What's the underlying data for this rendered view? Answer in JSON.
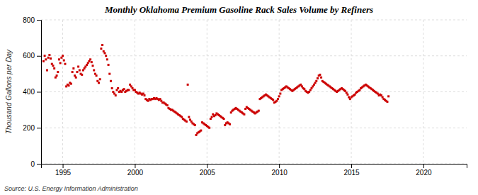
{
  "chart_data": {
    "type": "scatter",
    "title": "Monthly Oklahoma Premium Gasoline Rack Sales Volume by Refiners",
    "ylabel": "Thousand Gallons per Day",
    "source": "Source: U.S. Energy Information Administration",
    "color": "#cc0000",
    "marker": "square",
    "grid": true,
    "ylim": [
      0,
      800
    ],
    "yticks": [
      0,
      200,
      400,
      600,
      800
    ],
    "xlim": [
      1993.5,
      2023.0
    ],
    "xticks": [
      1995,
      2000,
      2005,
      2010,
      2015,
      2020
    ],
    "x": [
      1993.6666666666667,
      1993.75,
      1993.8333333333333,
      1993.9166666666667,
      1994,
      1994.0833333333333,
      1994.1666666666667,
      1994.25,
      1994.3333333333333,
      1994.4166666666667,
      1994.5,
      1994.5833333333333,
      1994.6666666666667,
      1994.75,
      1994.8333333333333,
      1994.9166666666667,
      1995,
      1995.0833333333333,
      1995.1666666666667,
      1995.25,
      1995.3333333333333,
      1995.4166666666667,
      1995.5,
      1995.5833333333333,
      1995.6666666666667,
      1995.75,
      1995.8333333333333,
      1995.9166666666667,
      1996,
      1996.0833333333333,
      1996.1666666666667,
      1996.25,
      1996.3333333333333,
      1996.4166666666667,
      1996.5,
      1996.5833333333333,
      1996.6666666666667,
      1996.75,
      1996.8333333333333,
      1996.9166666666667,
      1997,
      1997.0833333333333,
      1997.1666666666667,
      1997.25,
      1997.3333333333333,
      1997.4166666666667,
      1997.5,
      1997.5833333333333,
      1997.6666666666667,
      1997.75,
      1997.8333333333333,
      1997.9166666666667,
      1998,
      1998.0833333333333,
      1998.1666666666667,
      1998.25,
      1998.3333333333333,
      1998.4166666666667,
      1998.5,
      1998.5833333333333,
      1998.6666666666667,
      1998.75,
      1998.8333333333333,
      1998.9166666666667,
      1999,
      1999.0833333333333,
      1999.1666666666667,
      1999.25,
      1999.3333333333333,
      1999.4166666666667,
      1999.5,
      1999.5833333333333,
      1999.6666666666667,
      1999.75,
      1999.8333333333333,
      1999.9166666666667,
      2000,
      2000.0833333333333,
      2000.1666666666667,
      2000.25,
      2000.3333333333333,
      2000.4166666666667,
      2000.5,
      2000.5833333333333,
      2000.6666666666667,
      2000.75,
      2000.8333333333333,
      2000.9166666666667,
      2001,
      2001.0833333333333,
      2001.1666666666667,
      2001.25,
      2001.3333333333333,
      2001.4166666666667,
      2001.5,
      2001.5833333333333,
      2001.6666666666667,
      2001.75,
      2001.8333333333333,
      2001.9166666666667,
      2002,
      2002.0833333333333,
      2002.1666666666667,
      2002.25,
      2002.3333333333333,
      2002.4166666666667,
      2002.5,
      2002.5833333333333,
      2002.6666666666667,
      2002.75,
      2002.8333333333333,
      2002.9166666666667,
      2003,
      2003.0833333333333,
      2003.1666666666667,
      2003.25,
      2003.3333333333333,
      2003.4166666666667,
      2003.5,
      2003.5833333333333,
      2003.6666666666667,
      2003.75,
      2003.8333333333333,
      2003.9166666666667,
      2004,
      2004.0833333333333,
      2004.1666666666667,
      2004.25,
      2004.3333333333333,
      2004.4166666666667,
      2004.5,
      2004.5833333333333,
      2004.6666666666667,
      2004.75,
      2004.8333333333333,
      2004.9166666666667,
      2005,
      2005.0833333333333,
      2005.1666666666667,
      2005.25,
      2005.3333333333333,
      2005.4166666666667,
      2005.5,
      2005.5833333333333,
      2005.6666666666667,
      2005.75,
      2005.8333333333333,
      2005.9166666666667,
      2006,
      2006.0833333333333,
      2006.1666666666667,
      2006.25,
      2006.3333333333333,
      2006.4166666666667,
      2006.5,
      2006.5833333333333,
      2006.6666666666667,
      2006.75,
      2006.8333333333333,
      2006.9166666666667,
      2007,
      2007.0833333333333,
      2007.1666666666667,
      2007.25,
      2007.3333333333333,
      2007.4166666666667,
      2007.5,
      2007.5833333333333,
      2007.6666666666667,
      2007.75,
      2007.8333333333333,
      2007.9166666666667,
      2008,
      2008.0833333333333,
      2008.1666666666667,
      2008.25,
      2008.3333333333333,
      2008.4166666666667,
      2008.5,
      2008.5833333333333,
      2008.6666666666667,
      2008.75,
      2008.8333333333333,
      2008.9166666666667,
      2009,
      2009.0833333333333,
      2009.1666666666667,
      2009.25,
      2009.3333333333333,
      2009.4166666666667,
      2009.5,
      2009.5833333333333,
      2009.6666666666667,
      2009.75,
      2009.8333333333333,
      2009.9166666666667,
      2010,
      2010.0833333333333,
      2010.1666666666667,
      2010.25,
      2010.3333333333333,
      2010.4166666666667,
      2010.5,
      2010.5833333333333,
      2010.6666666666667,
      2010.75,
      2010.8333333333333,
      2010.9166666666667,
      2011,
      2011.0833333333333,
      2011.1666666666667,
      2011.25,
      2011.3333333333333,
      2011.4166666666667,
      2011.5,
      2011.5833333333333,
      2011.6666666666667,
      2011.75,
      2011.8333333333333,
      2011.9166666666667,
      2012,
      2012.0833333333333,
      2012.1666666666667,
      2012.25,
      2012.3333333333333,
      2012.4166666666667,
      2012.5,
      2012.5833333333333,
      2012.6666666666667,
      2012.75,
      2012.8333333333333,
      2012.9166666666667,
      2013,
      2013.0833333333333,
      2013.1666666666667,
      2013.25,
      2013.3333333333333,
      2013.4166666666667,
      2013.5,
      2013.5833333333333,
      2013.6666666666667,
      2013.75,
      2013.8333333333333,
      2013.9166666666667,
      2014,
      2014.0833333333333,
      2014.1666666666667,
      2014.25,
      2014.3333333333333,
      2014.4166666666667,
      2014.5,
      2014.5833333333333,
      2014.6666666666667,
      2014.75,
      2014.8333333333333,
      2014.9166666666667,
      2015,
      2015.0833333333333,
      2015.1666666666667,
      2015.25,
      2015.3333333333333,
      2015.4166666666667,
      2015.5,
      2015.5833333333333,
      2015.6666666666667,
      2015.75,
      2015.8333333333333,
      2015.9166666666667,
      2016,
      2016.0833333333333,
      2016.1666666666667,
      2016.25,
      2016.3333333333333,
      2016.4166666666667,
      2016.5,
      2016.5833333333333,
      2016.6666666666667,
      2016.75,
      2016.8333333333333,
      2016.9166666666667,
      2017,
      2017.0833333333333,
      2017.1666666666667,
      2017.25,
      2017.3333333333333,
      2017.4166666666667,
      2017.5,
      2017.5833333333333
    ],
    "values": [
      570,
      600,
      580,
      520,
      590,
      605,
      585,
      555,
      545,
      530,
      480,
      490,
      510,
      580,
      560,
      590,
      600,
      575,
      555,
      430,
      440,
      435,
      450,
      445,
      510,
      530,
      490,
      480,
      510,
      540,
      520,
      500,
      495,
      520,
      530,
      540,
      550,
      560,
      570,
      580,
      565,
      545,
      520,
      500,
      490,
      460,
      450,
      470,
      640,
      660,
      625,
      615,
      600,
      580,
      550,
      500,
      460,
      420,
      400,
      390,
      380,
      410,
      420,
      400,
      405,
      400,
      410,
      415,
      400,
      405,
      410,
      410,
      440,
      430,
      420,
      410,
      410,
      400,
      395,
      390,
      395,
      390,
      385,
      390,
      380,
      360,
      355,
      350,
      360,
      355,
      360,
      360,
      365,
      360,
      365,
      360,
      355,
      360,
      350,
      340,
      340,
      335,
      330,
      325,
      310,
      305,
      300,
      300,
      295,
      290,
      285,
      280,
      275,
      270,
      265,
      260,
      250,
      245,
      240,
      235,
      440,
      260,
      245,
      235,
      225,
      220,
      215,
      160,
      170,
      175,
      180,
      185,
      230,
      225,
      220,
      215,
      210,
      205,
      200,
      250,
      260,
      275,
      265,
      270,
      280,
      275,
      270,
      265,
      260,
      255,
      250,
      215,
      225,
      230,
      225,
      220,
      285,
      295,
      300,
      305,
      310,
      305,
      300,
      295,
      290,
      285,
      280,
      275,
      305,
      315,
      310,
      305,
      300,
      295,
      290,
      285,
      280,
      285,
      290,
      295,
      360,
      365,
      370,
      375,
      380,
      385,
      380,
      375,
      370,
      365,
      360,
      355,
      340,
      345,
      350,
      360,
      375,
      390,
      410,
      415,
      420,
      425,
      430,
      425,
      420,
      415,
      410,
      405,
      410,
      415,
      420,
      425,
      430,
      435,
      440,
      430,
      420,
      415,
      405,
      400,
      395,
      400,
      410,
      420,
      430,
      440,
      450,
      460,
      475,
      490,
      495,
      480,
      460,
      455,
      450,
      445,
      440,
      435,
      430,
      425,
      420,
      415,
      410,
      405,
      400,
      405,
      410,
      415,
      420,
      415,
      410,
      405,
      395,
      385,
      370,
      360,
      370,
      375,
      380,
      385,
      395,
      400,
      405,
      410,
      420,
      425,
      430,
      435,
      440,
      435,
      430,
      425,
      420,
      415,
      410,
      405,
      400,
      395,
      390,
      380,
      385,
      380,
      370,
      360,
      355,
      350,
      345,
      375
    ]
  }
}
